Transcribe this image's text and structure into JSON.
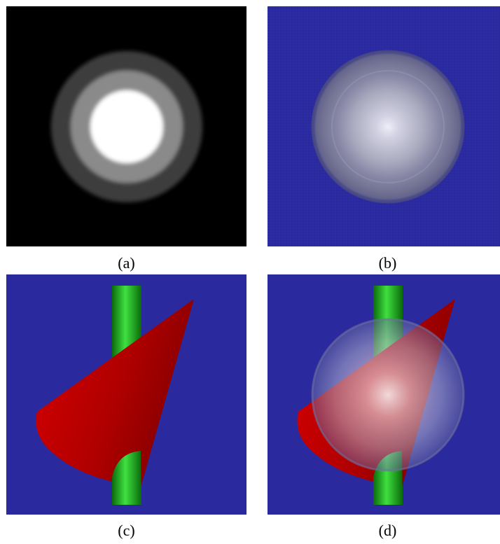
{
  "figure": {
    "panels": [
      {
        "id": "a",
        "caption": "(a)"
      },
      {
        "id": "b",
        "caption": "(b)"
      },
      {
        "id": "c",
        "caption": "(c)"
      },
      {
        "id": "d",
        "caption": "(d)"
      }
    ]
  },
  "colors": {
    "blue_background": "#2a2a9e",
    "black_background": "#000000",
    "cone_red": "#b00000",
    "cylinder_green": "#1fb01f"
  }
}
